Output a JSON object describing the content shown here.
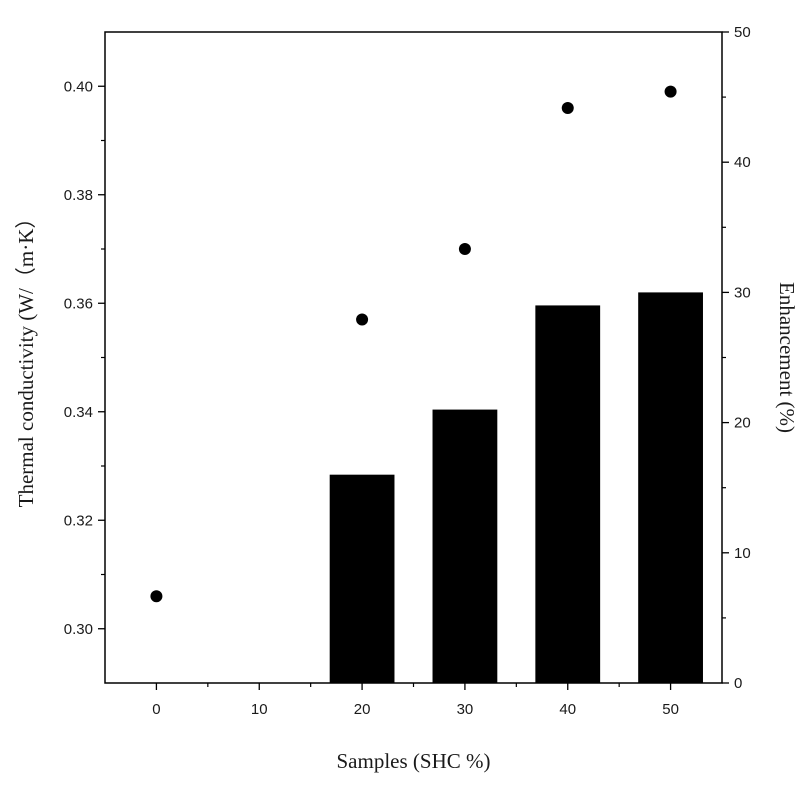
{
  "chart_data": {
    "type": "bar",
    "x_categories": [
      "0",
      "10",
      "20",
      "30",
      "40",
      "50"
    ],
    "xlabel": "Samples (SHC %)",
    "ylabel_left": "Thermal conductivity (W/（m·K）",
    "ylabel_right": "Enhancement (%)",
    "y_left_ticks": [
      "0.30",
      "0.32",
      "0.34",
      "0.36",
      "0.38",
      "0.40"
    ],
    "y_left_range": [
      0.29,
      0.41
    ],
    "y_right_ticks": [
      "0",
      "10",
      "20",
      "30",
      "40",
      "50"
    ],
    "y_right_range": [
      0,
      50
    ],
    "series": [
      {
        "kind": "bar",
        "axis": "right",
        "color": "#000000",
        "x": [
          "20",
          "30",
          "40",
          "50"
        ],
        "values": [
          16,
          21,
          29,
          30
        ]
      },
      {
        "kind": "scatter",
        "axis": "left",
        "color": "#000000",
        "x": [
          "0",
          "20",
          "30",
          "40",
          "50"
        ],
        "values": [
          0.306,
          0.357,
          0.37,
          0.396,
          0.399
        ]
      }
    ],
    "grid": false,
    "legend": "none"
  }
}
